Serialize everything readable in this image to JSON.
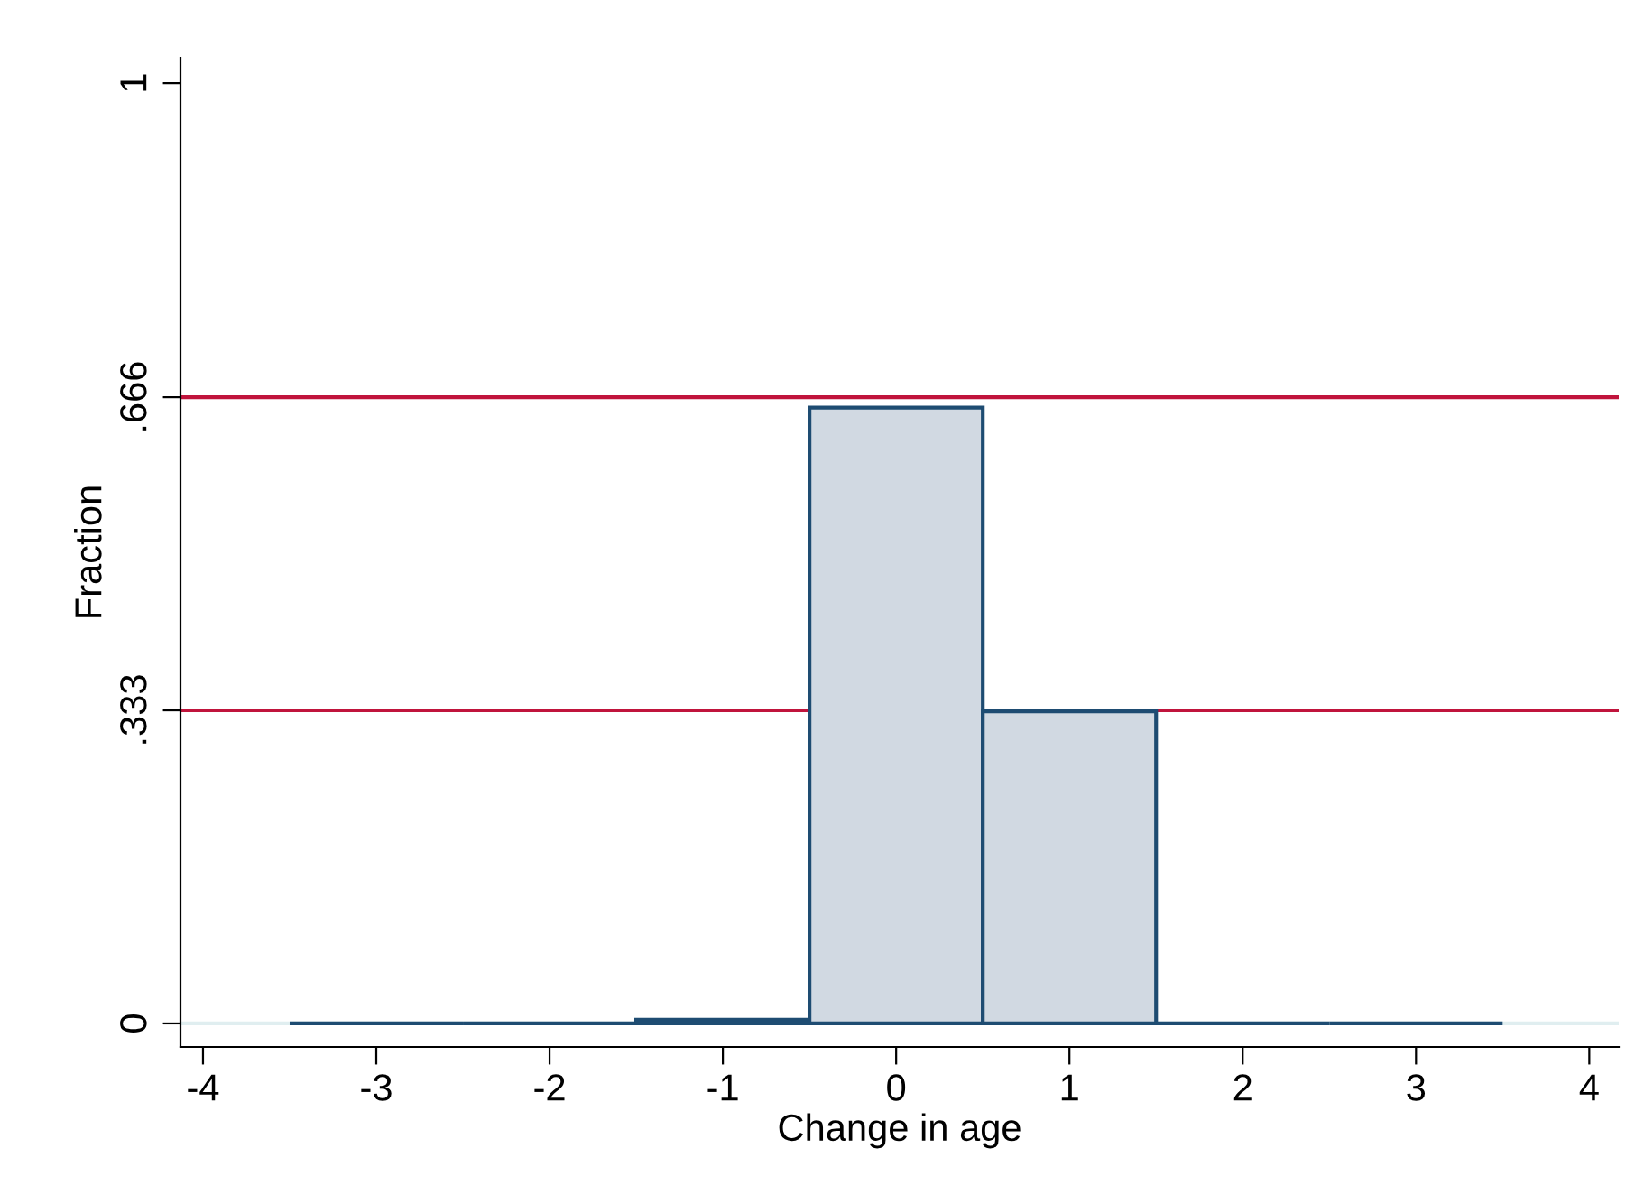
{
  "chart_data": {
    "type": "histogram",
    "xlabel": "Change in age",
    "ylabel": "Fraction",
    "bins": [
      -3.5,
      -2.5,
      -1.5,
      -0.5,
      0.5,
      1.5,
      2.5,
      3.5
    ],
    "values": [
      0,
      0,
      0.004,
      0.655,
      0.332,
      0,
      0
    ],
    "colors": [
      "#1e4c72",
      "#1e4c72",
      "#1e4c72",
      "#d1d9e2",
      "#d1d9e2",
      "#1e4c72",
      "#1e4c72"
    ],
    "xlim": [
      -4.13,
      4.17
    ],
    "ylim": [
      -0.025,
      1.027
    ],
    "xticks": [
      -4,
      -3,
      -2,
      -1,
      0,
      1,
      2,
      3,
      4
    ],
    "yticks": [
      0,
      {
        "value": 0.333,
        "label": ".333"
      },
      {
        "value": 0.666,
        "label": ".666"
      },
      1
    ],
    "ref_lines": [
      {
        "axis": "y",
        "value": 0,
        "color": "#e0eef0"
      },
      {
        "axis": "y",
        "value": 0.333,
        "color": "#c0143c"
      },
      {
        "axis": "y",
        "value": 0.666,
        "color": "#c0143c"
      }
    ],
    "grid": false
  }
}
